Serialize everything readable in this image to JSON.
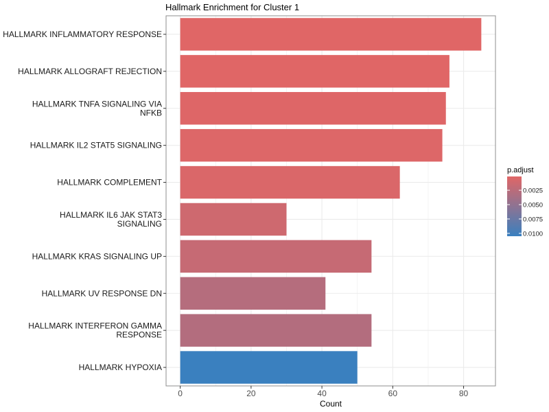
{
  "chart_data": {
    "type": "bar",
    "orientation": "horizontal",
    "title": "Hallmark Enrichment for Cluster 1",
    "xlabel": "Count",
    "ylabel": "",
    "xlim": [
      -4,
      89
    ],
    "x_ticks": [
      0,
      20,
      40,
      60,
      80
    ],
    "grid": true,
    "categories": [
      [
        "HALLMARK INFLAMMATORY RESPONSE"
      ],
      [
        "HALLMARK ALLOGRAFT REJECTION"
      ],
      [
        "HALLMARK TNFA SIGNALING VIA",
        "NFKB"
      ],
      [
        "HALLMARK IL2 STAT5 SIGNALING"
      ],
      [
        "HALLMARK COMPLEMENT"
      ],
      [
        "HALLMARK IL6 JAK STAT3",
        "SIGNALING"
      ],
      [
        "HALLMARK KRAS SIGNALING UP"
      ],
      [
        "HALLMARK UV RESPONSE DN"
      ],
      [
        "HALLMARK INTERFERON GAMMA",
        "RESPONSE"
      ],
      [
        "HALLMARK HYPOXIA"
      ]
    ],
    "values": [
      85,
      76,
      75,
      74,
      62,
      30,
      54,
      41,
      54,
      50
    ],
    "p_adjust": [
      0.0001,
      0.0001,
      0.0002,
      0.0003,
      0.0005,
      0.0012,
      0.0017,
      0.0028,
      0.0029,
      0.0105
    ],
    "legend": {
      "title": "p.adjust",
      "position": "right",
      "ticks": [
        "0.0025",
        "0.0050",
        "0.0075",
        "0.0100"
      ],
      "tick_values": [
        0.0025,
        0.005,
        0.0075,
        0.01
      ],
      "range": [
        0.0001,
        0.0105
      ],
      "color_low": "#e06666",
      "color_high": "#3a80bf"
    },
    "colors": {
      "panel_border": "#8c8c8c",
      "grid": "#ebebeb"
    }
  }
}
